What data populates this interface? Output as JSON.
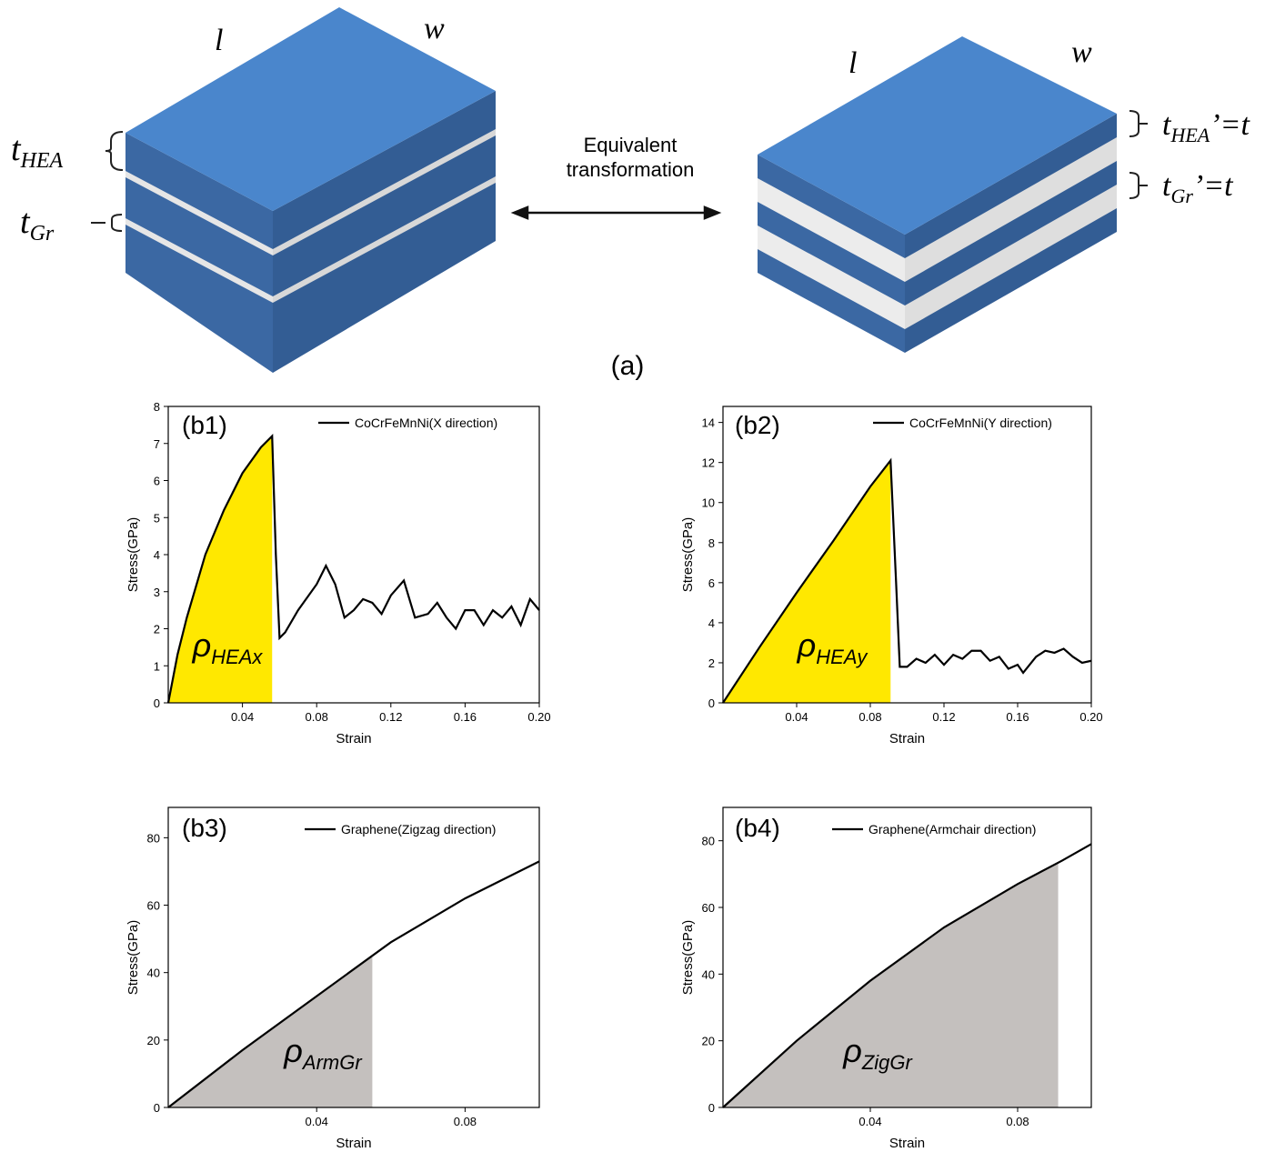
{
  "diagram": {
    "left": {
      "length": "l",
      "width": "w",
      "t_hea": {
        "base": "t",
        "sub": "HEA"
      },
      "t_gr": {
        "base": "t",
        "sub": "Gr"
      }
    },
    "transform": {
      "line1": "Equivalent",
      "line2": "transformation"
    },
    "right": {
      "length": "l",
      "width": "w",
      "t_hea": {
        "base": "t",
        "sub": "HEA",
        "suffix": "’=t"
      },
      "t_gr": {
        "base": "t",
        "sub": "Gr",
        "suffix": "’=t"
      }
    },
    "caption": "(a)"
  },
  "chart_data": [
    {
      "type": "line",
      "title": "(b1)",
      "xlabel": "Strain",
      "ylabel": "Stress(GPa)",
      "x": [
        0,
        0.005,
        0.01,
        0.02,
        0.03,
        0.04,
        0.05,
        0.056,
        0.058,
        0.06,
        0.063,
        0.07,
        0.08,
        0.085,
        0.09,
        0.095,
        0.1,
        0.105,
        0.11,
        0.115,
        0.12,
        0.127,
        0.133,
        0.14,
        0.145,
        0.15,
        0.155,
        0.16,
        0.165,
        0.17,
        0.175,
        0.18,
        0.185,
        0.19,
        0.195,
        0.2
      ],
      "series": [
        {
          "name": "CoCrFeMnNi(X direction)",
          "color": "#000000",
          "values": [
            0,
            1.3,
            2.3,
            4.0,
            5.2,
            6.2,
            6.9,
            7.2,
            4.0,
            1.75,
            1.9,
            2.5,
            3.2,
            3.7,
            3.2,
            2.3,
            2.5,
            2.8,
            2.7,
            2.4,
            2.9,
            3.3,
            2.3,
            2.4,
            2.7,
            2.3,
            2.0,
            2.5,
            2.5,
            2.1,
            2.5,
            2.3,
            2.6,
            2.1,
            2.8,
            2.5
          ]
        }
      ],
      "xlim": [
        0,
        0.2
      ],
      "ylim": [
        0,
        8
      ],
      "xticks": [
        0.04,
        0.08,
        0.12,
        0.16,
        {
          "value": 0.2,
          "label": "0.20"
        }
      ],
      "yticks": [
        0,
        1,
        2,
        3,
        4,
        5,
        6,
        7,
        8
      ],
      "shade": {
        "to": 0.056,
        "color": "#ffe800",
        "label": {
          "base": "ρ",
          "sub": "HEAx"
        }
      },
      "legend": "upper right"
    },
    {
      "type": "line",
      "title": "(b2)",
      "xlabel": "Strain",
      "ylabel": "Stress(GPa)",
      "x": [
        0,
        0.02,
        0.04,
        0.06,
        0.08,
        0.091,
        0.094,
        0.096,
        0.1,
        0.105,
        0.11,
        0.115,
        0.12,
        0.125,
        0.13,
        0.135,
        0.14,
        0.145,
        0.15,
        0.155,
        0.16,
        0.163,
        0.17,
        0.175,
        0.18,
        0.185,
        0.19,
        0.195,
        0.2
      ],
      "series": [
        {
          "name": "CoCrFeMnNi(Y direction)",
          "color": "#000000",
          "values": [
            0,
            2.8,
            5.5,
            8.1,
            10.8,
            12.1,
            6.0,
            1.8,
            1.8,
            2.2,
            2.0,
            2.4,
            1.9,
            2.4,
            2.2,
            2.6,
            2.6,
            2.1,
            2.3,
            1.7,
            1.9,
            1.5,
            2.3,
            2.6,
            2.5,
            2.7,
            2.3,
            2.0,
            2.1
          ]
        }
      ],
      "xlim": [
        0,
        0.2
      ],
      "ylim": [
        0,
        14.8
      ],
      "xticks": [
        0.04,
        0.08,
        0.12,
        0.16,
        {
          "value": 0.2,
          "label": "0.20"
        }
      ],
      "yticks": [
        0,
        2,
        4,
        6,
        8,
        10,
        12,
        14
      ],
      "shade": {
        "to": 0.091,
        "color": "#ffe800",
        "label": {
          "base": "ρ",
          "sub": "HEAy"
        }
      },
      "legend": "upper right"
    },
    {
      "type": "line",
      "title": "(b3)",
      "xlabel": "Strain",
      "ylabel": "Stress(GPa)",
      "x": [
        0,
        0.02,
        0.04,
        0.06,
        0.08,
        0.1
      ],
      "series": [
        {
          "name": "Graphene(Zigzag direction)",
          "color": "#000000",
          "values": [
            0,
            17,
            33,
            49,
            62,
            73
          ]
        }
      ],
      "xlim": [
        0,
        0.1
      ],
      "ylim": [
        0,
        89
      ],
      "xticks": [
        0.04,
        0.08
      ],
      "yticks": [
        0,
        20,
        40,
        60,
        80
      ],
      "shade": {
        "to": 0.055,
        "color": "#c4c0be",
        "label": {
          "base": "ρ",
          "sub": "ArmGr"
        }
      },
      "legend": "upper right"
    },
    {
      "type": "line",
      "title": "(b4)",
      "xlabel": "Strain",
      "ylabel": "Stress(GPa)",
      "x": [
        0,
        0.02,
        0.04,
        0.06,
        0.08,
        0.092,
        0.1
      ],
      "series": [
        {
          "name": "Graphene(Armchair direction)",
          "color": "#000000",
          "values": [
            0,
            20,
            38,
            54,
            67,
            74,
            79
          ]
        }
      ],
      "xlim": [
        0,
        0.1
      ],
      "ylim": [
        0,
        90
      ],
      "xticks": [
        0.04,
        0.08
      ],
      "yticks": [
        0,
        20,
        40,
        60,
        80
      ],
      "shade": {
        "to": 0.091,
        "color": "#c4c0be",
        "label": {
          "base": "ρ",
          "sub": "ZigGr"
        }
      },
      "legend": "upper right"
    }
  ]
}
